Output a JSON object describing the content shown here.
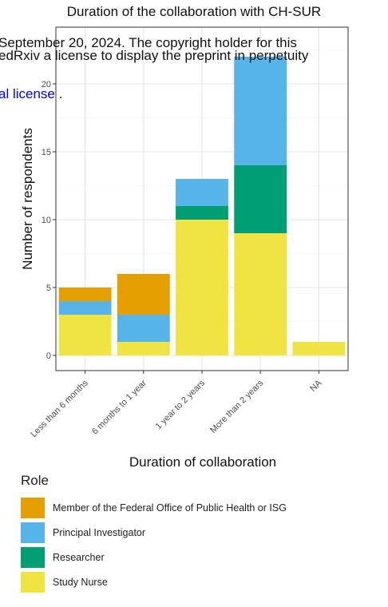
{
  "overlay": {
    "line1": "September 20, 2024. The copyright holder for this",
    "line2": "edRxiv a license to display the preprint in perpetuity",
    "link_text": "al license",
    "link_suffix": " ."
  },
  "colors": {
    "Member of the Federal Office of Public Health or ISG": "#E69F00",
    "Principal Investigator": "#56B4E9",
    "Researcher": "#009E73",
    "Study Nurse": "#F0E442",
    "link": "#0000ee"
  },
  "chart_data": {
    "type": "bar",
    "stacked": true,
    "title": "Duration of the collaboration with CH-SUR",
    "xlabel": "Duration of collaboration",
    "ylabel": "Number of respondents",
    "categories": [
      "Less than 6 months",
      "6 months to 1 year",
      "1 year to 2 years",
      "More than 2 years",
      "NA"
    ],
    "ylim": [
      0,
      20
    ],
    "yticks": [
      0,
      5,
      10,
      15,
      20
    ],
    "grid": true,
    "legend_title": "Role",
    "legend_position": "bottom",
    "series": [
      {
        "name": "Study Nurse",
        "values": [
          3,
          1,
          10,
          9,
          1
        ]
      },
      {
        "name": "Researcher",
        "values": [
          0,
          0,
          1,
          5,
          0
        ]
      },
      {
        "name": "Principal Investigator",
        "values": [
          1,
          2,
          2,
          8,
          0
        ]
      },
      {
        "name": "Member of the Federal Office of Public Health or ISG",
        "values": [
          1,
          3,
          0,
          0,
          0
        ]
      }
    ],
    "legend_order": [
      "Member of the Federal Office of Public Health or ISG",
      "Principal Investigator",
      "Researcher",
      "Study Nurse"
    ]
  }
}
